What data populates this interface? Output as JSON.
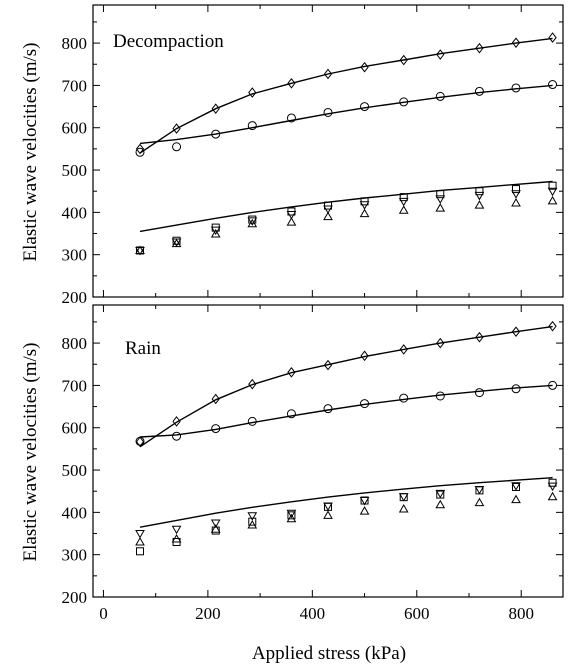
{
  "chart_data": [
    {
      "type": "scatter",
      "title": "Decompaction",
      "xlabel": "Applied stress (kPa)",
      "ylabel": "Elastic wave velocities (m/s)",
      "xlim": [
        -20,
        880
      ],
      "ylim": [
        200,
        890
      ],
      "xticks": [
        0,
        200,
        400,
        600,
        800
      ],
      "yticks": [
        200,
        300,
        400,
        500,
        600,
        700,
        800
      ],
      "grid": false,
      "x": [
        70,
        140,
        215,
        285,
        360,
        430,
        500,
        575,
        645,
        720,
        790,
        860
      ],
      "series": [
        {
          "marker": "diamond",
          "values": [
            550,
            598,
            645,
            683,
            705,
            727,
            743,
            760,
            773,
            788,
            801,
            813
          ]
        },
        {
          "marker": "circle",
          "values": [
            542,
            555,
            585,
            605,
            623,
            636,
            650,
            661,
            674,
            686,
            694,
            702
          ]
        },
        {
          "marker": "square",
          "values": [
            310,
            333,
            364,
            383,
            402,
            416,
            426,
            436,
            443,
            450,
            455,
            463
          ]
        },
        {
          "marker": "triangle-down",
          "values": [
            310,
            330,
            358,
            380,
            395,
            408,
            418,
            426,
            432,
            440,
            444,
            450
          ]
        },
        {
          "marker": "triangle-up",
          "values": [
            310,
            326,
            349,
            373,
            377,
            390,
            397,
            405,
            410,
            417,
            422,
            427
          ]
        }
      ],
      "fits": [
        {
          "x": [
            70,
            140,
            215,
            285,
            360,
            430,
            500,
            575,
            645,
            720,
            790,
            860
          ],
          "values": [
            540,
            598,
            645,
            680,
            705,
            727,
            745,
            760,
            775,
            788,
            800,
            811
          ]
        },
        {
          "x": [
            70,
            140,
            215,
            285,
            360,
            430,
            500,
            575,
            645,
            720,
            790,
            860
          ],
          "values": [
            563,
            572,
            585,
            600,
            617,
            633,
            647,
            660,
            672,
            683,
            692,
            700
          ]
        },
        {
          "x": [
            70,
            140,
            215,
            285,
            360,
            430,
            500,
            575,
            645,
            720,
            790,
            860
          ],
          "values": [
            355,
            370,
            386,
            400,
            413,
            424,
            434,
            443,
            452,
            459,
            466,
            473
          ]
        }
      ]
    },
    {
      "type": "scatter",
      "title": "Rain",
      "xlabel": "Applied stress (kPa)",
      "ylabel": "Elastic wave velocities (m/s)",
      "xlim": [
        -20,
        880
      ],
      "ylim": [
        200,
        890
      ],
      "xticks": [
        0,
        200,
        400,
        600,
        800
      ],
      "yticks": [
        200,
        300,
        400,
        500,
        600,
        700,
        800
      ],
      "grid": false,
      "x": [
        70,
        140,
        215,
        285,
        360,
        430,
        500,
        575,
        645,
        720,
        790,
        860
      ],
      "series": [
        {
          "marker": "diamond",
          "values": [
            567,
            615,
            668,
            703,
            731,
            748,
            770,
            785,
            800,
            814,
            827,
            840
          ]
        },
        {
          "marker": "circle",
          "values": [
            568,
            580,
            598,
            615,
            633,
            645,
            657,
            670,
            675,
            683,
            692,
            700
          ]
        },
        {
          "marker": "square",
          "values": [
            308,
            330,
            357,
            378,
            393,
            413,
            428,
            436,
            442,
            452,
            460,
            470
          ]
        },
        {
          "marker": "triangle-down",
          "values": [
            350,
            360,
            375,
            392,
            398,
            415,
            428,
            437,
            445,
            454,
            463,
            462
          ]
        },
        {
          "marker": "triangle-up",
          "values": [
            330,
            337,
            360,
            370,
            385,
            393,
            403,
            408,
            418,
            423,
            430,
            437
          ]
        }
      ],
      "fits": [
        {
          "x": [
            70,
            140,
            215,
            285,
            360,
            430,
            500,
            575,
            645,
            720,
            790,
            860
          ],
          "values": [
            555,
            613,
            666,
            702,
            730,
            749,
            768,
            785,
            800,
            814,
            827,
            839
          ]
        },
        {
          "x": [
            70,
            140,
            215,
            285,
            360,
            430,
            500,
            575,
            645,
            720,
            790,
            860
          ],
          "values": [
            578,
            583,
            596,
            612,
            628,
            642,
            655,
            667,
            677,
            686,
            694,
            700
          ]
        },
        {
          "x": [
            70,
            140,
            215,
            285,
            360,
            430,
            500,
            575,
            645,
            720,
            790,
            860
          ],
          "values": [
            365,
            381,
            398,
            412,
            425,
            436,
            446,
            455,
            463,
            470,
            476,
            482
          ]
        }
      ]
    }
  ]
}
